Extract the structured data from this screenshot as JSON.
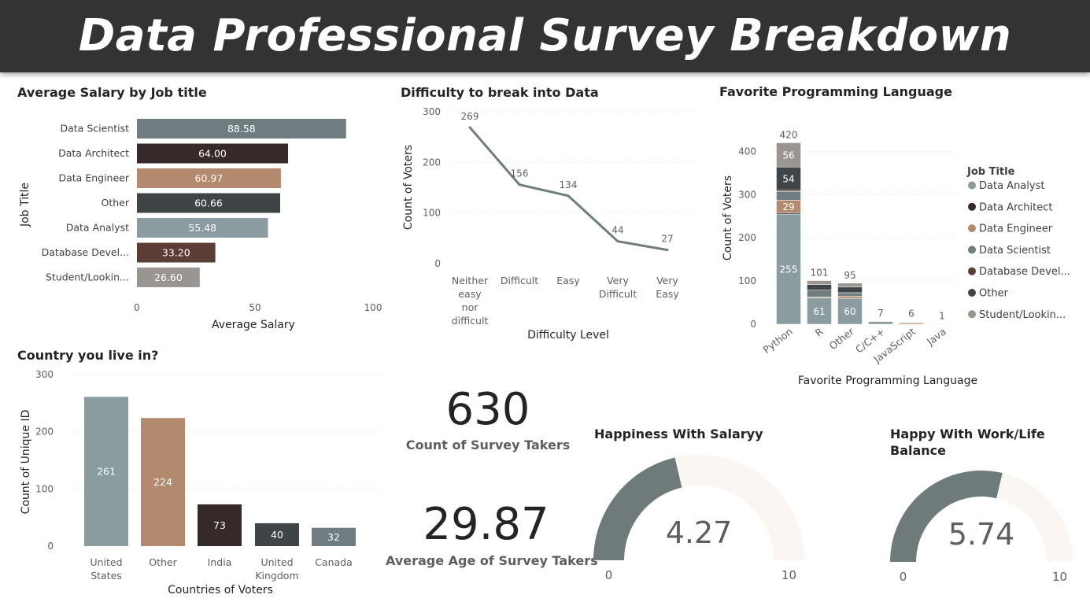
{
  "header": {
    "title": "Data Professional Survey Breakdown"
  },
  "colors": {
    "data_scientist": "#6f7d80",
    "data_architect": "#362a28",
    "data_engineer": "#b38a6e",
    "other": "#3f4547",
    "data_analyst": "#8a9ca0",
    "database_developer": "#5c3d35",
    "student": "#9a9590",
    "line": "#6f7d80",
    "gauge_fill": "#6f7a7b",
    "gauge_track": "#fbf6f1"
  },
  "chart_data": [
    {
      "id": "salary",
      "type": "bar",
      "orientation": "horizontal",
      "title": "Average Salary by Job title",
      "xlabel": "Average Salary",
      "ylabel": "Job Title",
      "categories": [
        "Data Scientist",
        "Data Architect",
        "Data Engineer",
        "Other",
        "Data Analyst",
        "Database Devel...",
        "Student/Lookin..."
      ],
      "values": [
        88.58,
        64.0,
        60.97,
        60.66,
        55.48,
        33.2,
        26.6
      ],
      "value_labels": [
        "88.58",
        "64.00",
        "60.97",
        "60.66",
        "55.48",
        "33.20",
        "26.60"
      ],
      "xlim": [
        0,
        100
      ],
      "xticks": [
        "0",
        "50",
        "100"
      ]
    },
    {
      "id": "difficulty",
      "type": "line",
      "title": "Difficulty to break into Data",
      "xlabel": "Difficulty Level",
      "ylabel": "Count of Voters",
      "categories": [
        [
          "Neither",
          "easy",
          "nor",
          "difficult"
        ],
        [
          "Difficult"
        ],
        [
          "Easy"
        ],
        [
          "Very",
          "Difficult"
        ],
        [
          "Very",
          "Easy"
        ]
      ],
      "values": [
        269,
        156,
        134,
        44,
        27
      ],
      "ylim": [
        0,
        300
      ],
      "yticks": [
        "0",
        "100",
        "200",
        "300"
      ]
    },
    {
      "id": "language",
      "type": "bar",
      "stacked": true,
      "title": "Favorite Programming Language",
      "xlabel": "Favorite Programming Language",
      "ylabel": "Count of Voters",
      "categories": [
        "Python",
        "R",
        "Other",
        "C/C++",
        "JavaScript",
        "Java"
      ],
      "totals": [
        420,
        101,
        95,
        7,
        6,
        1
      ],
      "ylim": [
        0,
        450
      ],
      "yticks": [
        "0",
        "100",
        "200",
        "300",
        "400"
      ],
      "legend_title": "Job Title",
      "series": [
        {
          "name": "Data Analyst",
          "values": [
            255,
            61,
            60,
            6,
            0,
            1
          ],
          "labels": [
            "255",
            "61",
            "60",
            "",
            "",
            ""
          ]
        },
        {
          "name": "Data Architect",
          "values": [
            3,
            0,
            0,
            0,
            0,
            0
          ],
          "labels": [
            "",
            "",
            "",
            "",
            "",
            ""
          ]
        },
        {
          "name": "Data Engineer",
          "values": [
            29,
            2,
            5,
            0,
            3,
            0
          ],
          "labels": [
            "29",
            "",
            "",
            "",
            "",
            ""
          ]
        },
        {
          "name": "Data Scientist",
          "values": [
            20,
            16,
            8,
            0,
            1,
            0
          ],
          "labels": [
            "",
            "",
            "",
            "",
            "",
            ""
          ]
        },
        {
          "name": "Database Devel...",
          "values": [
            3,
            0,
            0,
            0,
            1,
            0
          ],
          "labels": [
            "",
            "",
            "",
            "",
            "",
            ""
          ]
        },
        {
          "name": "Other",
          "values": [
            54,
            13,
            13,
            1,
            1,
            0
          ],
          "labels": [
            "54",
            "",
            "",
            "",
            "",
            ""
          ]
        },
        {
          "name": "Student/Lookin...",
          "values": [
            56,
            9,
            9,
            0,
            0,
            0
          ],
          "labels": [
            "56",
            "",
            "",
            "",
            "",
            ""
          ]
        }
      ]
    },
    {
      "id": "country",
      "type": "bar",
      "title": "Country you live in?",
      "xlabel": "Countries of Voters",
      "ylabel": "Count of Unique ID",
      "categories": [
        [
          "United",
          "States"
        ],
        [
          "Other"
        ],
        [
          "India"
        ],
        [
          "United",
          "Kingdom"
        ],
        [
          "Canada"
        ]
      ],
      "values": [
        261,
        224,
        73,
        40,
        32
      ],
      "ylim": [
        0,
        300
      ],
      "yticks": [
        "0",
        "100",
        "200",
        "300"
      ]
    }
  ],
  "kpis": {
    "count": {
      "value": "630",
      "label": "Count of Survey Takers"
    },
    "age": {
      "value": "29.87",
      "label": "Average Age of Survey Takers"
    }
  },
  "gauges": [
    {
      "id": "salary",
      "title": "Happiness With Salaryy",
      "value": 4.27,
      "display": "4.27",
      "min": 0,
      "max": 10,
      "min_label": "0",
      "max_label": "10"
    },
    {
      "id": "worklife",
      "title": "Happy With Work/Life Balance",
      "value": 5.74,
      "display": "5.74",
      "min": 0,
      "max": 10,
      "min_label": "0",
      "max_label": "10"
    }
  ]
}
